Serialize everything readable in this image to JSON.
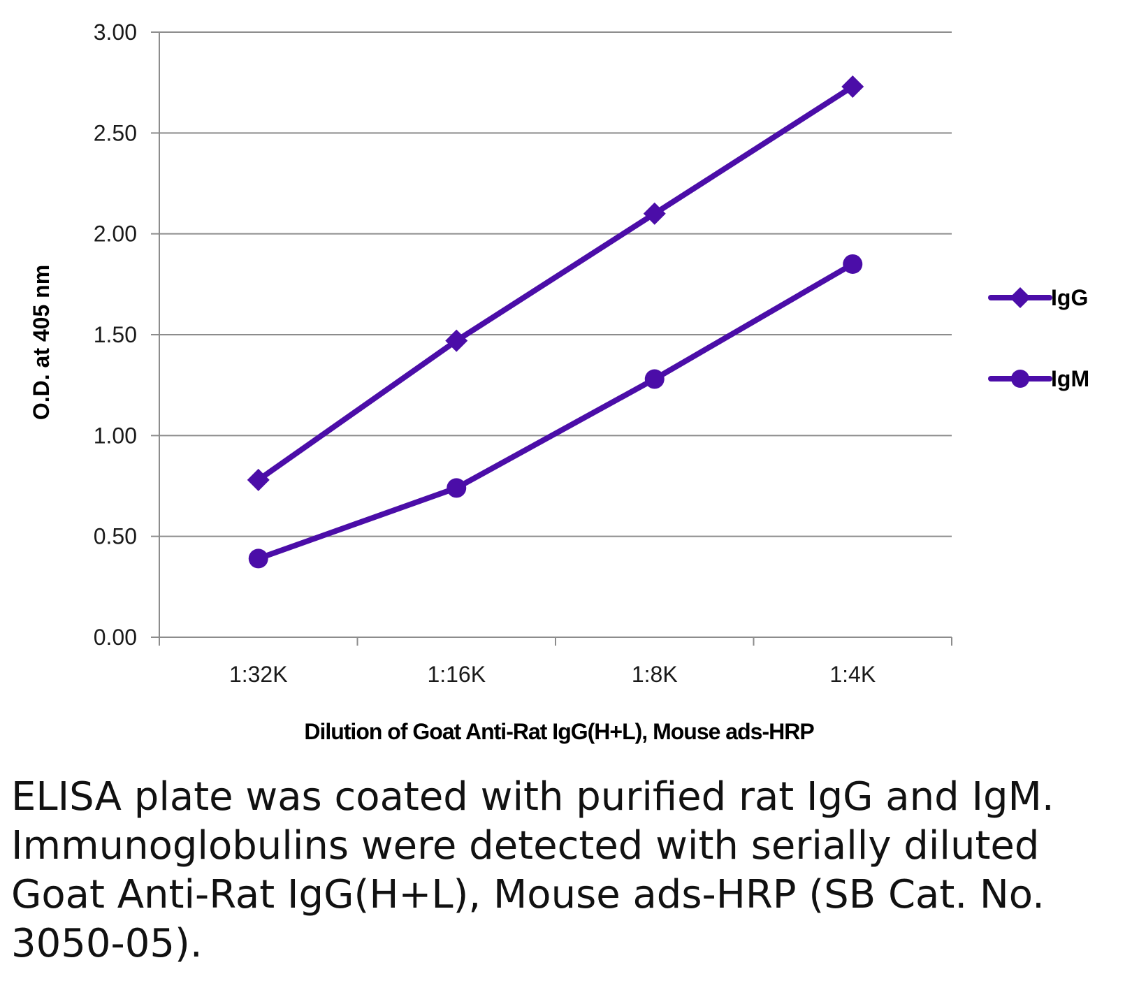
{
  "chart_data": {
    "type": "line",
    "title": "",
    "xlabel": "Dilution of Goat Anti-Rat IgG(H+L), Mouse ads-HRP",
    "ylabel": "O.D. at 405 nm",
    "categories": [
      "1:32K",
      "1:16K",
      "1:8K",
      "1:4K"
    ],
    "ylim": [
      0,
      3
    ],
    "yticks": [
      "0.00",
      "0.50",
      "1.00",
      "1.50",
      "2.00",
      "2.50",
      "3.00"
    ],
    "grid": true,
    "legend_position": "right",
    "series": [
      {
        "name": "IgG",
        "marker": "diamond",
        "values": [
          0.78,
          1.47,
          2.1,
          2.73
        ]
      },
      {
        "name": "IgM",
        "marker": "circle",
        "values": [
          0.39,
          0.74,
          1.28,
          1.85
        ]
      }
    ],
    "colors": {
      "series": "#4B0DA8",
      "grid": "#8c8c8c",
      "axis": "#8c8c8c"
    }
  },
  "caption": "ELISA plate was coated with purified rat IgG and IgM.  Immunoglobulins were detected with serially diluted Goat Anti-Rat IgG(H+L), Mouse ads-HRP (SB Cat. No. 3050-05)."
}
